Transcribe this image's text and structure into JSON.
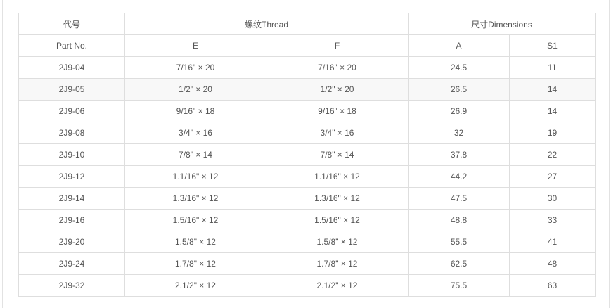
{
  "header": {
    "part_cn": "代号",
    "part_en": "Part No.",
    "thread": "螺纹Thread",
    "dimensions": "尺寸Dimensions",
    "col_e": "E",
    "col_f": "F",
    "col_a": "A",
    "col_s1": "S1"
  },
  "rows": [
    {
      "part": "2J9-04",
      "e": "7/16\" × 20",
      "f": "7/16\" × 20",
      "a": "24.5",
      "s1": "11"
    },
    {
      "part": "2J9-05",
      "e": "1/2\" × 20",
      "f": "1/2\" × 20",
      "a": "26.5",
      "s1": "14"
    },
    {
      "part": "2J9-06",
      "e": "9/16\" × 18",
      "f": "9/16\" × 18",
      "a": "26.9",
      "s1": "14"
    },
    {
      "part": "2J9-08",
      "e": "3/4\" × 16",
      "f": "3/4\" × 16",
      "a": "32",
      "s1": "19"
    },
    {
      "part": "2J9-10",
      "e": "7/8\" × 14",
      "f": "7/8\" × 14",
      "a": "37.8",
      "s1": "22"
    },
    {
      "part": "2J9-12",
      "e": "1.1/16\" × 12",
      "f": "1.1/16\" × 12",
      "a": "44.2",
      "s1": "27"
    },
    {
      "part": "2J9-14",
      "e": "1.3/16\" × 12",
      "f": "1.3/16\" × 12",
      "a": "47.5",
      "s1": "30"
    },
    {
      "part": "2J9-16",
      "e": "1.5/16\" × 12",
      "f": "1.5/16\" × 12",
      "a": "48.8",
      "s1": "33"
    },
    {
      "part": "2J9-20",
      "e": "1.5/8\" × 12",
      "f": "1.5/8\" × 12",
      "a": "55.5",
      "s1": "41"
    },
    {
      "part": "2J9-24",
      "e": "1.7/8\" × 12",
      "f": "1.7/8\" × 12",
      "a": "62.5",
      "s1": "48"
    },
    {
      "part": "2J9-32",
      "e": "2.1/2\" × 12",
      "f": "2.1/2\" × 12",
      "a": "75.5",
      "s1": "63"
    }
  ]
}
